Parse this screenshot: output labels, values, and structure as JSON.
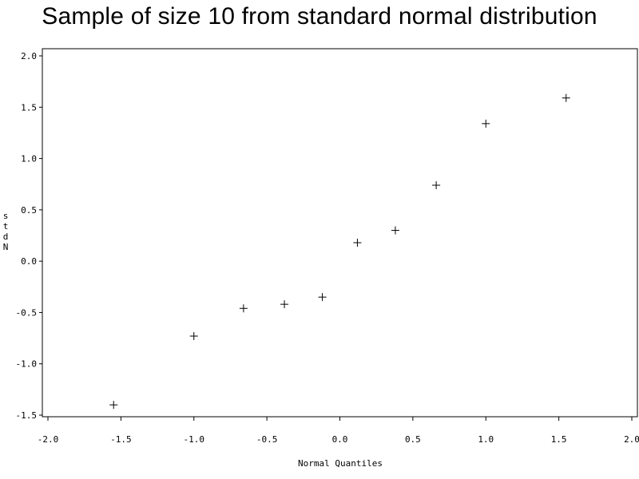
{
  "chart_data": {
    "type": "scatter",
    "title": "Sample of size 10 from standard normal distribution",
    "xlabel": "Normal Quantiles",
    "ylabel": "stdN",
    "xlim": [
      -2.0,
      2.0
    ],
    "ylim": [
      -1.5,
      2.0
    ],
    "xticks": [
      "-2.0",
      "-1.5",
      "-1.0",
      "-0.5",
      "0.0",
      "0.5",
      "1.0",
      "1.5",
      "2.0"
    ],
    "yticks": [
      "2.0",
      "1.5",
      "1.0",
      "0.5",
      "0.0",
      "-0.5",
      "-1.0",
      "-1.5"
    ],
    "marker": "+",
    "grid": false,
    "points": [
      {
        "x": -1.55,
        "y": -1.4
      },
      {
        "x": -1.0,
        "y": -0.73
      },
      {
        "x": -0.66,
        "y": -0.46
      },
      {
        "x": -0.38,
        "y": -0.42
      },
      {
        "x": -0.12,
        "y": -0.35
      },
      {
        "x": 0.12,
        "y": 0.18
      },
      {
        "x": 0.38,
        "y": 0.3
      },
      {
        "x": 0.66,
        "y": 0.74
      },
      {
        "x": 1.0,
        "y": 1.34
      },
      {
        "x": 1.55,
        "y": 1.59
      }
    ]
  }
}
